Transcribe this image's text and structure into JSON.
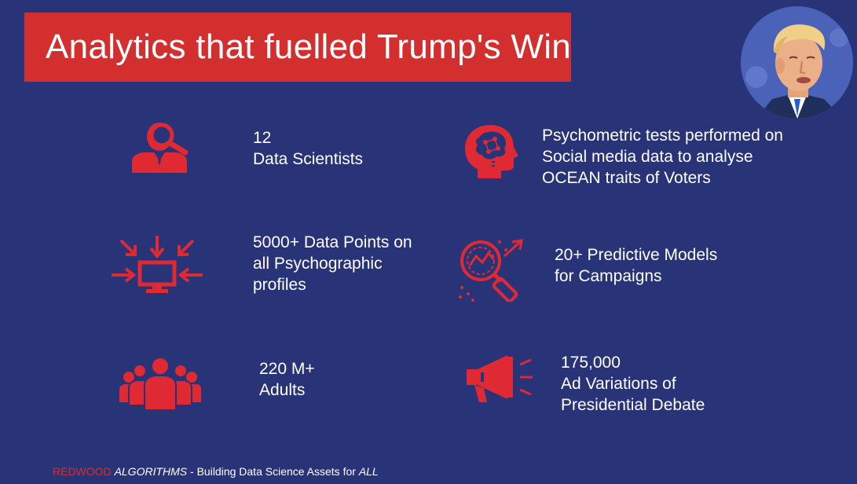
{
  "title": "Analytics that fuelled Trump's Win",
  "colors": {
    "background": "#293378",
    "accent": "#d32f2f",
    "text": "#ffffff"
  },
  "portrait": {
    "icon": "portrait-photo"
  },
  "facts": [
    {
      "icon": "data-scientist-icon",
      "lines": [
        "12",
        "Data Scientists"
      ]
    },
    {
      "icon": "brain-head-icon",
      "lines": [
        "Psychometric tests performed on",
        "Social media data to analyse",
        "OCEAN traits of Voters"
      ]
    },
    {
      "icon": "data-points-monitor-icon",
      "lines": [
        "5000+ Data Points on",
        "all Psychographic",
        "profiles"
      ]
    },
    {
      "icon": "predictive-analytics-icon",
      "lines": [
        "20+ Predictive Models",
        "for Campaigns"
      ]
    },
    {
      "icon": "people-group-icon",
      "lines": [
        "220 M+",
        "Adults"
      ]
    },
    {
      "icon": "megaphone-icon",
      "lines": [
        "175,000",
        "Ad Variations of",
        "Presidential Debate"
      ]
    }
  ],
  "footer": {
    "brand": "REDWOOD",
    "brand_italic": "ALGORITHMS",
    "tagline": " - Building Data Science Assets for ",
    "tagline_italic": "ALL"
  }
}
